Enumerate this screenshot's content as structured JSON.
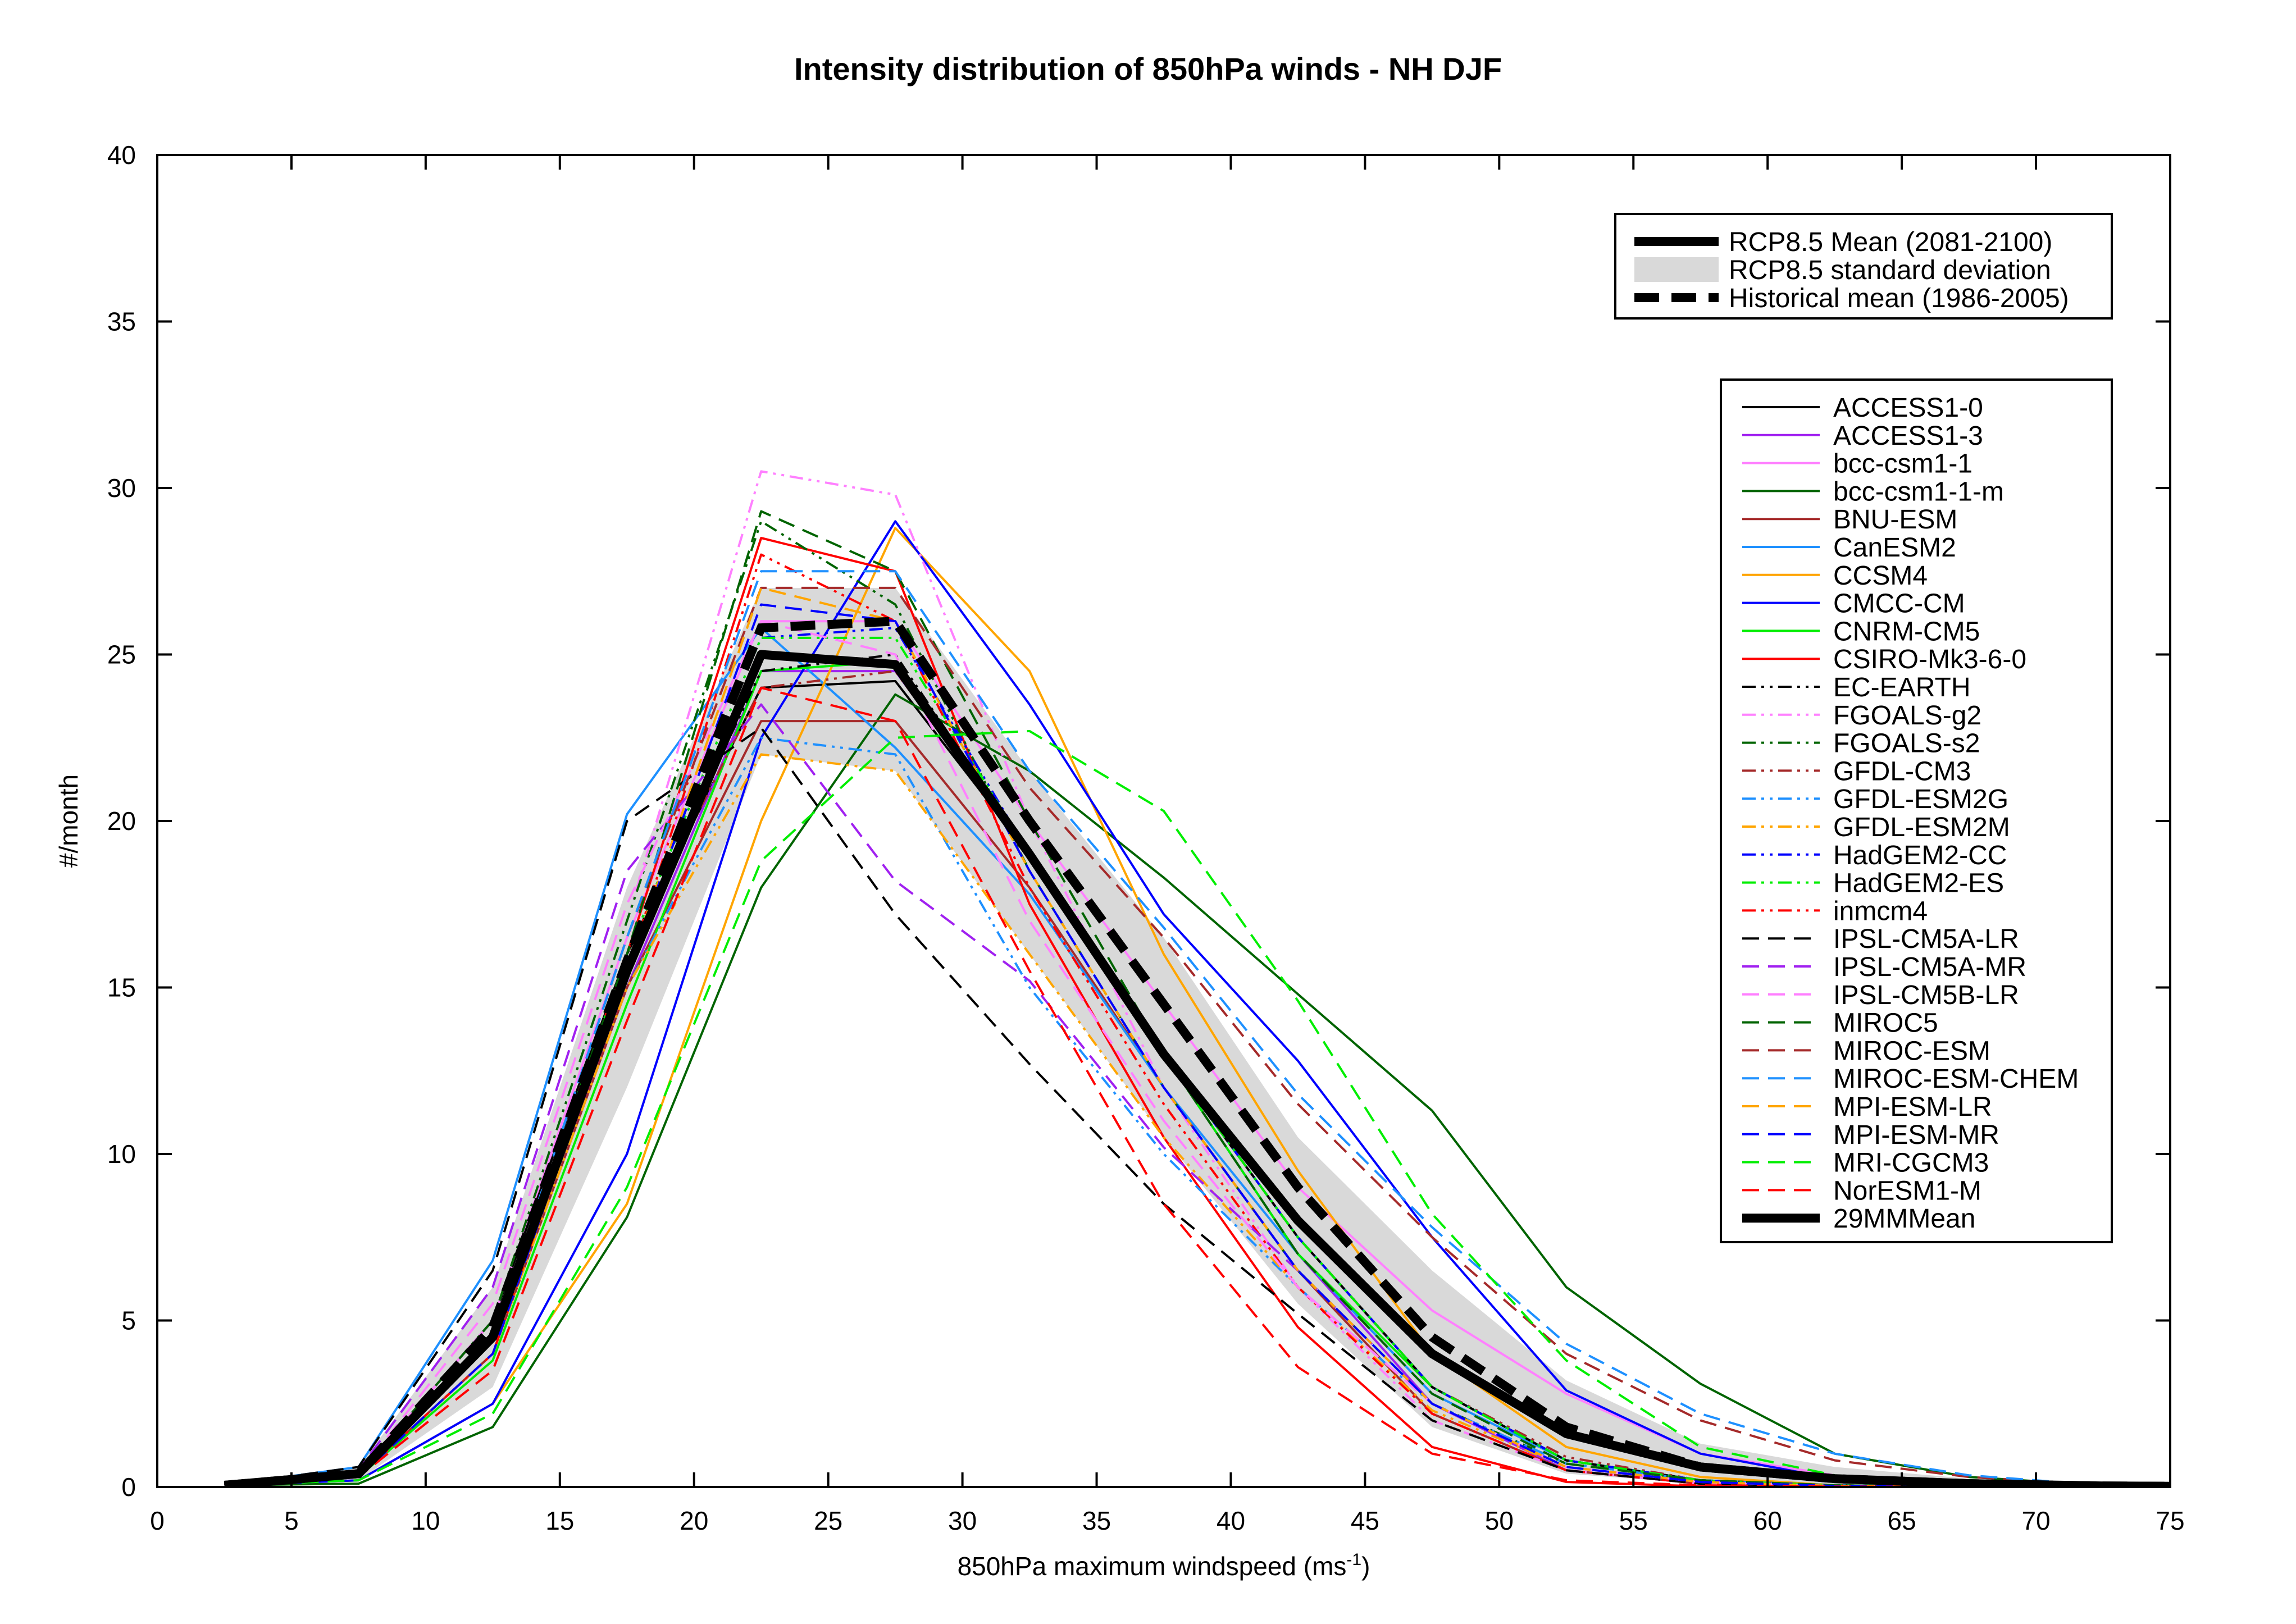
{
  "chart_data": {
    "type": "line",
    "title": "Intensity distribution of 850hPa winds - NH DJF",
    "xlabel": "850hPa maximum windspeed (ms",
    "xlabel_sup": "-1",
    "xlabel_close": ")",
    "ylabel": "#/month",
    "xlim": [
      0,
      75
    ],
    "ylim": [
      0,
      40
    ],
    "xticks": [
      0,
      5,
      10,
      15,
      20,
      25,
      30,
      35,
      40,
      45,
      50,
      55,
      60,
      65,
      70,
      75
    ],
    "yticks": [
      0,
      5,
      10,
      15,
      20,
      25,
      30,
      35,
      40
    ],
    "grid": false,
    "x": [
      2.5,
      7.5,
      12.5,
      17.5,
      22.5,
      27.5,
      32.5,
      37.5,
      42.5,
      47.5,
      52.5,
      57.5,
      62.5,
      67.5,
      72.5,
      77.5
    ],
    "summary_legend": [
      {
        "key": "rcp_mean",
        "label": "RCP8.5 Mean (2081-2100)"
      },
      {
        "key": "rcp_sd",
        "label": "RCP8.5 standard deviation"
      },
      {
        "key": "hist_mean",
        "label": "Historical mean (1986-2005)"
      }
    ],
    "summary": {
      "rcp_mean": [
        0.05,
        0.4,
        4.5,
        15.5,
        25.0,
        24.7,
        19.0,
        13.0,
        8.0,
        4.0,
        1.6,
        0.6,
        0.25,
        0.1,
        0.03,
        0.01
      ],
      "rcp_sd_upper": [
        0.1,
        0.6,
        6.0,
        18.0,
        27.0,
        27.0,
        21.5,
        16.5,
        10.5,
        6.5,
        3.2,
        1.3,
        0.6,
        0.25,
        0.08,
        0.03
      ],
      "rcp_sd_lower": [
        0.0,
        0.2,
        3.0,
        12.0,
        22.0,
        21.5,
        16.0,
        10.5,
        5.5,
        1.8,
        0.4,
        0.1,
        0.02,
        0.0,
        0.0,
        0.0
      ],
      "hist_mean": [
        0.05,
        0.4,
        4.8,
        15.8,
        25.8,
        26.0,
        20.0,
        14.5,
        9.0,
        4.5,
        1.8,
        0.6,
        0.25,
        0.1,
        0.03,
        0.01
      ]
    },
    "series": [
      {
        "name": "ACCESS1-0",
        "color": "#000000",
        "style": "solid",
        "values": [
          0.05,
          0.4,
          5.0,
          16.0,
          24.0,
          24.2,
          19.0,
          13.0,
          7.5,
          3.0,
          0.8,
          0.2,
          0.05,
          0.0,
          0.0,
          0.0
        ]
      },
      {
        "name": "ACCESS1-3",
        "color": "#a020f0",
        "style": "solid",
        "values": [
          0.05,
          0.4,
          4.5,
          15.0,
          24.5,
          24.5,
          19.0,
          13.0,
          7.0,
          2.5,
          0.5,
          0.1,
          0.02,
          0.0,
          0.0,
          0.0
        ]
      },
      {
        "name": "bcc-csm1-1",
        "color": "#ff80ff",
        "style": "solid",
        "values": [
          0.05,
          0.4,
          5.0,
          16.5,
          26.0,
          26.0,
          20.0,
          14.5,
          9.0,
          5.3,
          2.8,
          1.0,
          0.35,
          0.1,
          0.03,
          0.01
        ]
      },
      {
        "name": "bcc-csm1-1-m",
        "color": "#006400",
        "style": "solid",
        "values": [
          0.05,
          0.1,
          1.8,
          8.1,
          18.0,
          23.8,
          21.5,
          18.3,
          14.8,
          11.3,
          6.0,
          3.1,
          1.0,
          0.3,
          0.05,
          0.01
        ]
      },
      {
        "name": "BNU-ESM",
        "color": "#a52a2a",
        "style": "solid",
        "values": [
          0.05,
          0.3,
          4.0,
          15.0,
          23.0,
          23.0,
          18.0,
          12.0,
          6.5,
          2.2,
          0.5,
          0.1,
          0.02,
          0.0,
          0.0,
          0.0
        ]
      },
      {
        "name": "CanESM2",
        "color": "#1e90ff",
        "style": "solid",
        "values": [
          0.05,
          0.6,
          6.8,
          20.2,
          25.8,
          22.2,
          17.8,
          12.0,
          7.0,
          2.8,
          0.8,
          0.2,
          0.05,
          0.0,
          0.0,
          0.0
        ]
      },
      {
        "name": "CCSM4",
        "color": "#ffa500",
        "style": "solid",
        "values": [
          0.05,
          0.2,
          2.5,
          8.5,
          20.0,
          28.8,
          24.5,
          16.0,
          9.5,
          4.0,
          1.2,
          0.3,
          0.05,
          0.0,
          0.0,
          0.0
        ]
      },
      {
        "name": "CMCC-CM",
        "color": "#0000ff",
        "style": "solid",
        "values": [
          0.05,
          0.2,
          2.5,
          10.0,
          22.5,
          29.0,
          23.5,
          17.2,
          12.8,
          7.5,
          2.9,
          1.0,
          0.25,
          0.05,
          0.01,
          0.0
        ]
      },
      {
        "name": "CNRM-CM5",
        "color": "#00ee00",
        "style": "solid",
        "values": [
          0.05,
          0.3,
          3.8,
          14.5,
          24.5,
          24.8,
          19.0,
          13.0,
          7.0,
          3.0,
          0.8,
          0.2,
          0.05,
          0.0,
          0.0,
          0.0
        ]
      },
      {
        "name": "CSIRO-Mk3-6-0",
        "color": "#ff0000",
        "style": "solid",
        "values": [
          0.05,
          0.3,
          4.5,
          16.0,
          28.5,
          27.5,
          17.5,
          10.5,
          4.8,
          1.2,
          0.15,
          0.02,
          0.0,
          0.0,
          0.0,
          0.0
        ]
      },
      {
        "name": "EC-EARTH",
        "color": "#000000",
        "style": "dashdotdot",
        "values": [
          0.05,
          0.4,
          5.0,
          16.0,
          24.5,
          25.0,
          19.0,
          13.0,
          7.5,
          3.0,
          0.8,
          0.2,
          0.05,
          0.0,
          0.0,
          0.0
        ]
      },
      {
        "name": "FGOALS-g2",
        "color": "#ff80ff",
        "style": "dashdotdot",
        "values": [
          0.05,
          0.4,
          5.0,
          17.0,
          30.5,
          29.8,
          20.0,
          12.0,
          6.0,
          2.0,
          0.5,
          0.1,
          0.02,
          0.0,
          0.0,
          0.0
        ]
      },
      {
        "name": "FGOALS-s2",
        "color": "#006400",
        "style": "dashdotdot",
        "values": [
          0.05,
          0.4,
          5.0,
          17.0,
          29.0,
          26.5,
          18.5,
          12.0,
          6.5,
          2.5,
          0.7,
          0.2,
          0.05,
          0.0,
          0.0,
          0.0
        ]
      },
      {
        "name": "GFDL-CM3",
        "color": "#a52a2a",
        "style": "dashdotdot",
        "values": [
          0.05,
          0.3,
          4.5,
          16.0,
          24.0,
          24.5,
          19.0,
          13.0,
          7.5,
          3.0,
          0.9,
          0.2,
          0.05,
          0.0,
          0.0,
          0.0
        ]
      },
      {
        "name": "GFDL-ESM2G",
        "color": "#1e90ff",
        "style": "dashdotdot",
        "values": [
          0.05,
          0.3,
          4.0,
          15.0,
          22.5,
          22.0,
          15.0,
          10.0,
          6.0,
          2.5,
          0.7,
          0.2,
          0.05,
          0.0,
          0.0,
          0.0
        ]
      },
      {
        "name": "GFDL-ESM2M",
        "color": "#ffa500",
        "style": "dashdotdot",
        "values": [
          0.05,
          0.3,
          4.0,
          15.0,
          22.0,
          21.5,
          16.0,
          10.5,
          6.0,
          2.3,
          0.6,
          0.15,
          0.03,
          0.0,
          0.0,
          0.0
        ]
      },
      {
        "name": "HadGEM2-CC",
        "color": "#0000ff",
        "style": "dashdotdot",
        "values": [
          0.05,
          0.3,
          4.5,
          16.0,
          25.5,
          25.8,
          19.0,
          13.0,
          7.5,
          3.0,
          0.8,
          0.2,
          0.05,
          0.0,
          0.0,
          0.0
        ]
      },
      {
        "name": "HadGEM2-ES",
        "color": "#00ee00",
        "style": "dashdotdot",
        "values": [
          0.05,
          0.3,
          4.5,
          16.0,
          25.5,
          25.5,
          19.0,
          13.0,
          7.5,
          3.0,
          0.8,
          0.2,
          0.05,
          0.0,
          0.0,
          0.0
        ]
      },
      {
        "name": "inmcm4",
        "color": "#ff0000",
        "style": "dashdotdot",
        "values": [
          0.05,
          0.3,
          4.0,
          15.5,
          28.0,
          26.0,
          18.0,
          11.5,
          6.0,
          2.2,
          0.5,
          0.1,
          0.02,
          0.0,
          0.0,
          0.0
        ]
      },
      {
        "name": "IPSL-CM5A-LR",
        "color": "#000000",
        "style": "dashed",
        "values": [
          0.05,
          0.6,
          6.5,
          20.0,
          22.8,
          17.2,
          12.7,
          8.5,
          5.2,
          2.0,
          0.5,
          0.1,
          0.02,
          0.0,
          0.0,
          0.0
        ]
      },
      {
        "name": "IPSL-CM5A-MR",
        "color": "#a020f0",
        "style": "dashed",
        "values": [
          0.05,
          0.5,
          6.0,
          18.5,
          23.5,
          18.2,
          15.2,
          10.2,
          6.5,
          2.5,
          0.6,
          0.15,
          0.03,
          0.0,
          0.0,
          0.0
        ]
      },
      {
        "name": "IPSL-CM5B-LR",
        "color": "#ff80ff",
        "style": "dashed",
        "values": [
          0.05,
          0.4,
          5.5,
          17.5,
          26.0,
          25.0,
          17.0,
          11.0,
          6.0,
          2.5,
          0.6,
          0.15,
          0.03,
          0.0,
          0.0,
          0.0
        ]
      },
      {
        "name": "MIROC5",
        "color": "#006400",
        "style": "dashed",
        "values": [
          0.05,
          0.4,
          4.5,
          16.0,
          29.3,
          27.5,
          20.0,
          13.0,
          7.0,
          2.8,
          0.7,
          0.2,
          0.05,
          0.0,
          0.0,
          0.0
        ]
      },
      {
        "name": "MIROC-ESM",
        "color": "#a52a2a",
        "style": "dashed",
        "values": [
          0.05,
          0.4,
          4.5,
          16.5,
          27.0,
          27.0,
          21.0,
          16.5,
          11.5,
          7.5,
          4.0,
          2.0,
          0.8,
          0.3,
          0.05,
          0.01
        ]
      },
      {
        "name": "MIROC-ESM-CHEM",
        "color": "#1e90ff",
        "style": "dashed",
        "values": [
          0.05,
          0.4,
          4.5,
          16.5,
          27.5,
          27.5,
          21.5,
          16.8,
          11.8,
          7.8,
          4.3,
          2.2,
          1.0,
          0.35,
          0.05,
          0.01
        ]
      },
      {
        "name": "MPI-ESM-LR",
        "color": "#ffa500",
        "style": "dashed",
        "values": [
          0.05,
          0.3,
          4.0,
          15.5,
          27.0,
          26.0,
          18.5,
          12.0,
          6.5,
          2.5,
          0.6,
          0.15,
          0.03,
          0.0,
          0.0,
          0.0
        ]
      },
      {
        "name": "MPI-ESM-MR",
        "color": "#0000ff",
        "style": "dashed",
        "values": [
          0.05,
          0.3,
          4.0,
          15.5,
          26.5,
          26.0,
          18.5,
          12.0,
          6.5,
          2.5,
          0.6,
          0.15,
          0.03,
          0.0,
          0.0,
          0.0
        ]
      },
      {
        "name": "MRI-CGCM3",
        "color": "#00ee00",
        "style": "dashed",
        "values": [
          0.05,
          0.2,
          2.2,
          9.0,
          18.8,
          22.5,
          22.7,
          20.3,
          14.6,
          8.2,
          3.8,
          1.2,
          0.35,
          0.1,
          0.02,
          0.0
        ]
      },
      {
        "name": "NorESM1-M",
        "color": "#ff0000",
        "style": "dashed",
        "values": [
          0.05,
          0.3,
          3.5,
          14.0,
          24.0,
          23.0,
          15.5,
          8.5,
          3.6,
          1.0,
          0.2,
          0.05,
          0.01,
          0.0,
          0.0,
          0.0
        ]
      },
      {
        "name": "29MMMean",
        "color": "#000000",
        "style": "bold",
        "values": [
          0.05,
          0.4,
          4.5,
          15.5,
          25.0,
          24.7,
          19.0,
          13.0,
          8.0,
          4.0,
          1.6,
          0.6,
          0.25,
          0.1,
          0.03,
          0.01
        ]
      }
    ]
  }
}
